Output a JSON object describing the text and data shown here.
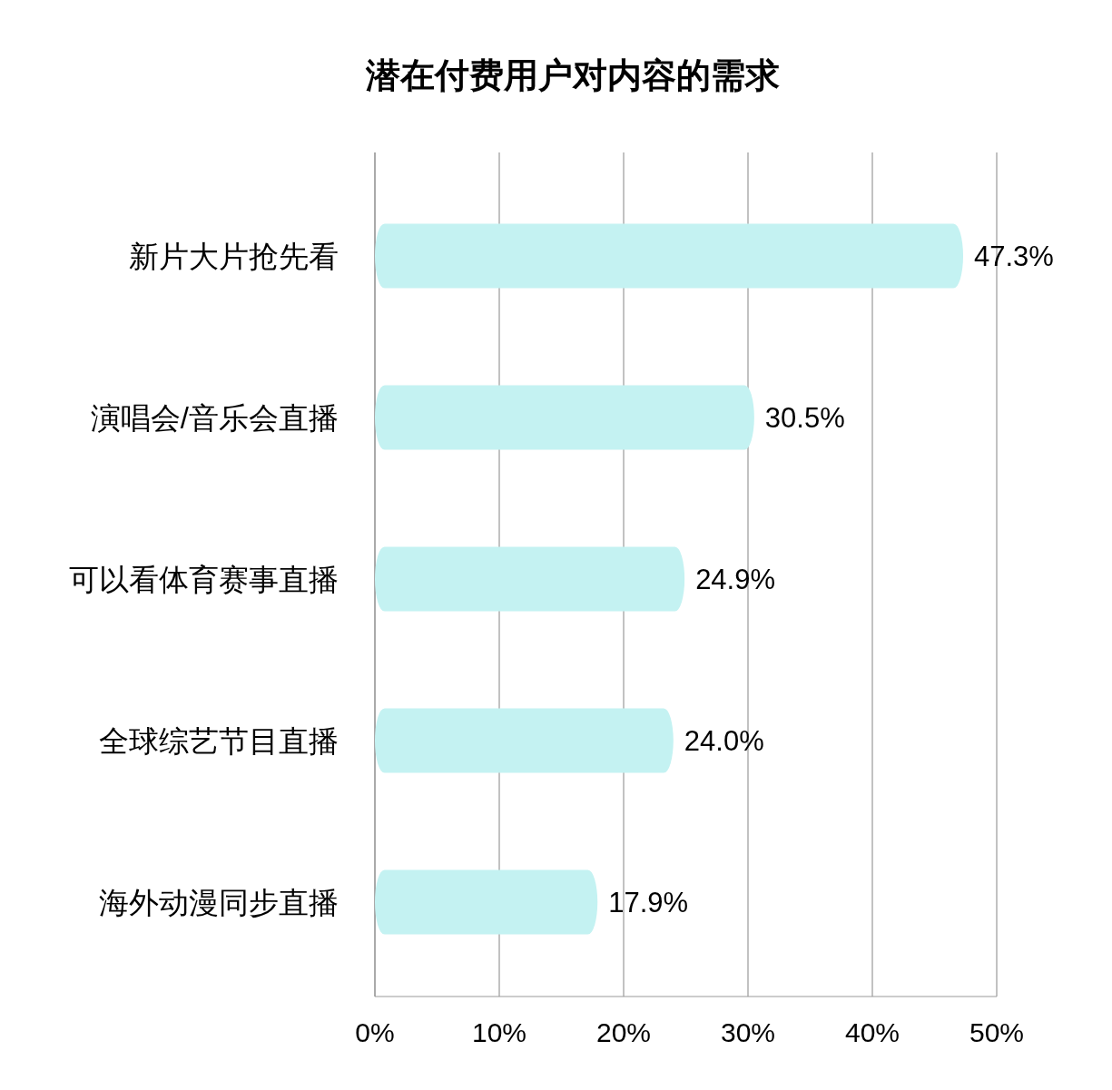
{
  "chart_data": {
    "type": "bar",
    "orientation": "horizontal",
    "title": "潜在付费用户对内容的需求",
    "categories": [
      "新片大片抢先看",
      "演唱会/音乐会直播",
      "可以看体育赛事直播",
      "全球综艺节目直播",
      "海外动漫同步直播"
    ],
    "values": [
      47.3,
      30.5,
      24.9,
      24.0,
      17.9
    ],
    "value_labels": [
      "47.3%",
      "30.5%",
      "24.9%",
      "24.0%",
      "17.9%"
    ],
    "color": "#c4f2f2",
    "xlim": [
      0,
      50
    ],
    "xticks": [
      {
        "value": 0,
        "label": "0%"
      },
      {
        "value": 10,
        "label": "10%"
      },
      {
        "value": 20,
        "label": "20%"
      },
      {
        "value": 30,
        "label": "30%"
      },
      {
        "value": 40,
        "label": "40%"
      },
      {
        "value": 50,
        "label": "50%"
      }
    ],
    "grid": "x"
  }
}
